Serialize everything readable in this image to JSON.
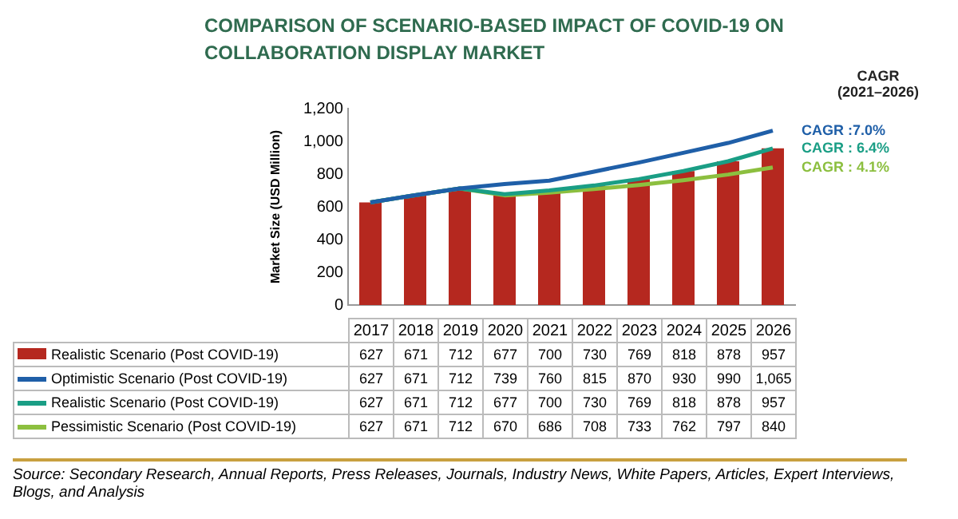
{
  "chart_data": {
    "type": "bar",
    "title": "COMPARISON OF SCENARIO-BASED IMPACT OF COVID-19 ON COLLABORATION DISPLAY MARKET",
    "ylabel": "Market Size (USD Million)",
    "categories": [
      "2017",
      "2018",
      "2019",
      "2020",
      "2021",
      "2022",
      "2023",
      "2024",
      "2025",
      "2026"
    ],
    "series": [
      {
        "name": "Realistic Scenario (Post COVID-19)",
        "color": "#b5281f",
        "values": [
          627,
          671,
          712,
          677,
          700,
          730,
          769,
          818,
          878,
          957
        ],
        "value_labels": [
          "627",
          "671",
          "712",
          "677",
          "700",
          "730",
          "769",
          "818",
          "878",
          "957"
        ]
      },
      {
        "name": "Optimistic Scenario (Post COVID-19)",
        "type": "line",
        "color": "#1f5fa8",
        "values": [
          627,
          671,
          712,
          739,
          760,
          815,
          870,
          930,
          990,
          1065
        ],
        "value_labels": [
          "627",
          "671",
          "712",
          "739",
          "760",
          "815",
          "870",
          "930",
          "990",
          "1,065"
        ]
      },
      {
        "name": "Realistic Scenario (Post COVID-19)",
        "type": "line",
        "color": "#1a9e85",
        "values": [
          627,
          671,
          712,
          677,
          700,
          730,
          769,
          818,
          878,
          957
        ],
        "value_labels": [
          "627",
          "671",
          "712",
          "677",
          "700",
          "730",
          "769",
          "818",
          "878",
          "957"
        ]
      },
      {
        "name": "Pessimistic Scenario (Post COVID-19)",
        "type": "line",
        "color": "#8cbf3f",
        "values": [
          627,
          671,
          712,
          670,
          686,
          708,
          733,
          762,
          797,
          840
        ],
        "value_labels": [
          "627",
          "671",
          "712",
          "670",
          "686",
          "708",
          "733",
          "762",
          "797",
          "840"
        ]
      }
    ],
    "ylim": [
      0,
      1200
    ],
    "yticks": [
      0,
      {
        "value": 200,
        "label": "200"
      },
      {
        "value": 400,
        "label": "400"
      },
      {
        "value": 600,
        "label": "600"
      },
      {
        "value": 800,
        "label": "800"
      },
      {
        "value": 1000,
        "label": "1,000"
      },
      {
        "value": 1200,
        "label": "1,200"
      }
    ],
    "legend": "bottom",
    "marker": "none",
    "line_style": "solid",
    "annotations": [
      "CAGR\n(2021–2026)",
      {
        "text": "CAGR :7.0%",
        "x": "2026",
        "y": 1065
      },
      {
        "text": "CAGR : 6.4%",
        "x": "2026",
        "y": 957
      },
      {
        "text": "CAGR : 4.1%",
        "x": "2026",
        "y": 840
      },
      "Source: Secondary Research, Annual Reports, Press Releases, Journals, Industry News, White Papers, Articles, Expert Interviews, Blogs, and Analysis"
    ]
  }
}
